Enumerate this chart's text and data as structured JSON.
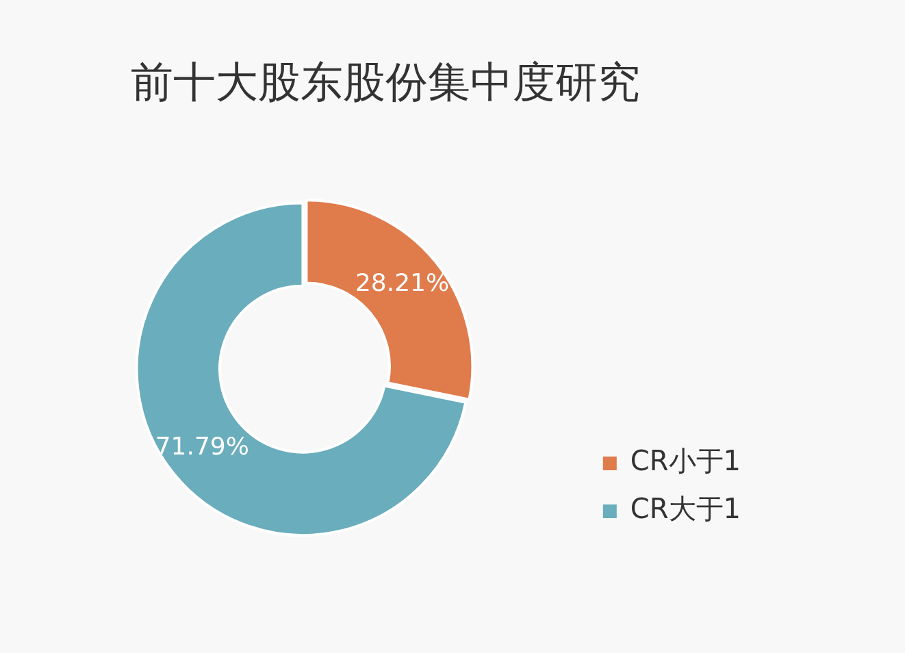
{
  "chart_data": {
    "type": "donut",
    "title": "前十大股东股份集中度研究",
    "categories": [
      "CR小于1",
      "CR大于1"
    ],
    "values": [
      28.21,
      71.79
    ],
    "colors": [
      "#e07b4c",
      "#6aadbd"
    ],
    "value_labels": [
      "28.21%",
      "71.79%"
    ],
    "legend": "right"
  }
}
